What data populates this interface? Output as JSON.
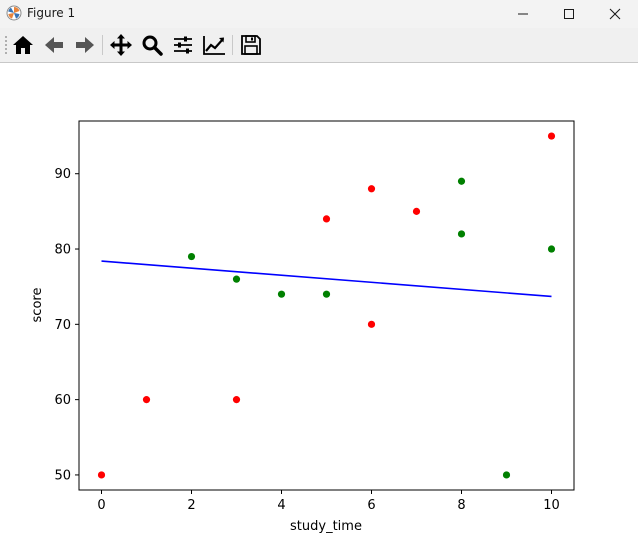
{
  "window": {
    "title": "Figure 1",
    "app_icon": "matplotlib-icon",
    "controls": [
      "minimize-icon",
      "maximize-icon",
      "close-icon"
    ]
  },
  "toolbar": {
    "tools": [
      {
        "name": "home",
        "icon": "home-icon"
      },
      {
        "name": "back",
        "icon": "arrow-left-icon"
      },
      {
        "name": "forward",
        "icon": "arrow-right-icon"
      },
      {
        "name": "pan",
        "icon": "move-icon"
      },
      {
        "name": "zoom",
        "icon": "magnifier-icon"
      },
      {
        "name": "configure-subplots",
        "icon": "sliders-icon"
      },
      {
        "name": "edit-axes",
        "icon": "line-chart-icon"
      },
      {
        "name": "save",
        "icon": "floppy-disk-icon"
      }
    ]
  },
  "chart_data": {
    "type": "scatter",
    "title": "",
    "xlabel": "study_time",
    "ylabel": "score",
    "xlim": [
      -0.5,
      10.5
    ],
    "ylim": [
      48,
      97
    ],
    "xticks": [
      0,
      2,
      4,
      6,
      8,
      10
    ],
    "yticks": [
      50,
      60,
      70,
      80,
      90
    ],
    "grid": false,
    "series": [
      {
        "color": "#ff0000",
        "points": [
          {
            "x": 0,
            "y": 50
          },
          {
            "x": 1,
            "y": 60
          },
          {
            "x": 3,
            "y": 60
          },
          {
            "x": 5,
            "y": 84
          },
          {
            "x": 6,
            "y": 88
          },
          {
            "x": 6,
            "y": 70
          },
          {
            "x": 7,
            "y": 85
          },
          {
            "x": 10,
            "y": 95
          }
        ]
      },
      {
        "color": "#008000",
        "points": [
          {
            "x": 2,
            "y": 79
          },
          {
            "x": 3,
            "y": 76
          },
          {
            "x": 4,
            "y": 74
          },
          {
            "x": 5,
            "y": 74
          },
          {
            "x": 8,
            "y": 89
          },
          {
            "x": 8,
            "y": 82
          },
          {
            "x": 9,
            "y": 50
          },
          {
            "x": 10,
            "y": 80
          }
        ]
      }
    ],
    "fit_line": {
      "color": "#0000ff",
      "x": [
        0,
        10
      ],
      "y": [
        78.4,
        73.7
      ]
    }
  }
}
